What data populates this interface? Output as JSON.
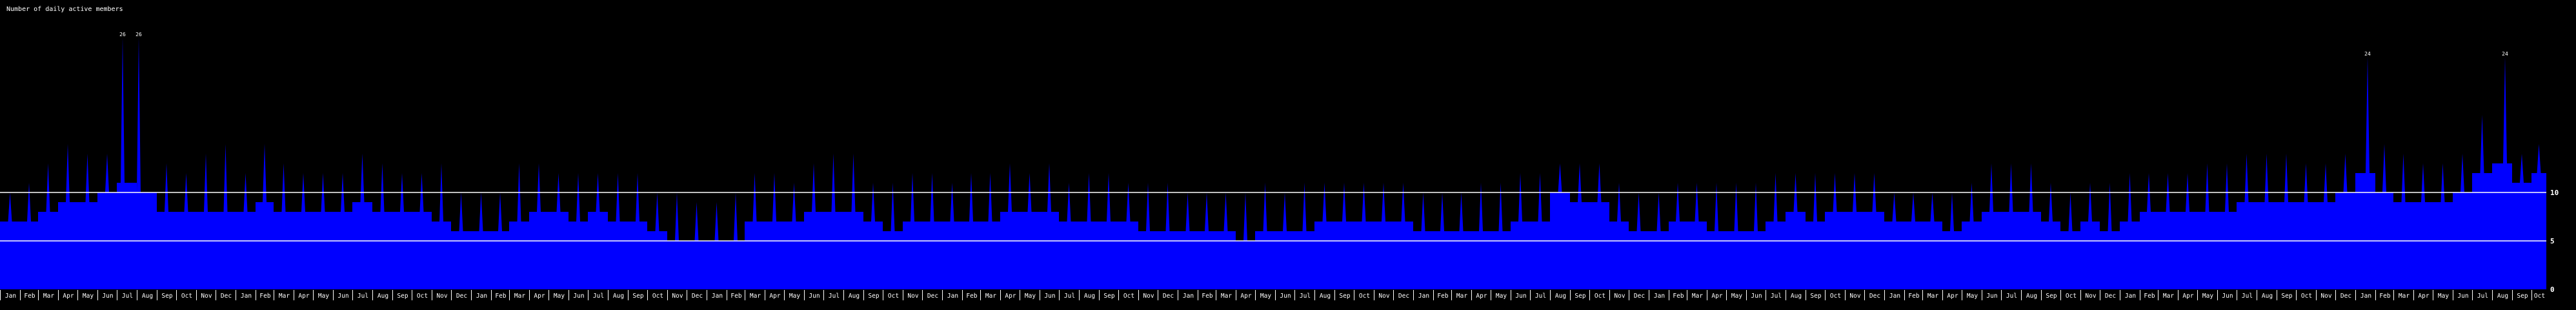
{
  "chart_data": {
    "type": "area",
    "title": "Number of daily active members",
    "granularity_note_free": true,
    "x_tick_labels": [
      "Jan",
      "Feb",
      "Mar",
      "Apr",
      "May",
      "Jun",
      "Jul",
      "Aug",
      "Sep",
      "Oct",
      "Nov",
      "Dec",
      "Jan",
      "Feb",
      "Mar",
      "Apr",
      "May",
      "Jun",
      "Jul",
      "Aug",
      "Sep",
      "Oct",
      "Nov",
      "Dec",
      "Jan",
      "Feb",
      "Mar",
      "Apr",
      "May",
      "Jun",
      "Jul",
      "Aug",
      "Sep",
      "Oct",
      "Nov",
      "Dec",
      "Jan",
      "Feb",
      "Mar",
      "Apr",
      "May",
      "Jun",
      "Jul",
      "Aug",
      "Sep",
      "Oct",
      "Nov",
      "Dec",
      "Jan",
      "Feb",
      "Mar",
      "Apr",
      "May",
      "Jun",
      "Jul",
      "Aug",
      "Sep",
      "Oct",
      "Nov",
      "Dec",
      "Jan",
      "Feb",
      "Mar",
      "Apr",
      "May",
      "Jun",
      "Jul",
      "Aug",
      "Sep",
      "Oct",
      "Nov",
      "Dec",
      "Jan",
      "Feb",
      "Mar",
      "Apr",
      "May",
      "Jun",
      "Jul",
      "Aug",
      "Sep",
      "Oct",
      "Nov",
      "Dec",
      "Jan",
      "Feb",
      "Mar",
      "Apr",
      "May",
      "Jun",
      "Jul",
      "Aug",
      "Sep",
      "Oct",
      "Nov",
      "Dec",
      "Jan",
      "Feb",
      "Mar",
      "Apr",
      "May",
      "Jun",
      "Jul",
      "Aug",
      "Sep",
      "Oct",
      "Nov",
      "Dec",
      "Jan",
      "Feb",
      "Mar",
      "Apr",
      "May",
      "Jun",
      "Jul",
      "Aug",
      "Sep",
      "Oct",
      "Nov",
      "Dec",
      "Jan",
      "Feb",
      "Mar",
      "Apr",
      "May",
      "Jun",
      "Jul",
      "Aug",
      "Sep",
      "Oct"
    ],
    "monthly_typical": [
      7,
      7,
      8,
      9,
      9,
      10,
      11,
      10,
      8,
      8,
      8,
      8,
      8,
      9,
      8,
      8,
      8,
      8,
      9,
      8,
      8,
      8,
      7,
      6,
      6,
      6,
      7,
      8,
      8,
      7,
      8,
      7,
      7,
      6,
      5,
      5,
      5,
      5,
      7,
      7,
      7,
      8,
      8,
      8,
      7,
      6,
      7,
      7,
      7,
      7,
      7,
      8,
      8,
      8,
      7,
      7,
      7,
      7,
      6,
      6,
      6,
      6,
      6,
      5,
      6,
      6,
      6,
      7,
      7,
      7,
      7,
      7,
      6,
      6,
      6,
      6,
      6,
      7,
      7,
      10,
      9,
      9,
      7,
      6,
      6,
      7,
      7,
      6,
      6,
      6,
      7,
      8,
      7,
      8,
      8,
      8,
      7,
      7,
      7,
      6,
      7,
      8,
      8,
      8,
      7,
      6,
      7,
      6,
      7,
      8,
      8,
      8,
      8,
      8,
      9,
      9,
      9,
      9,
      9,
      10,
      12,
      10,
      9,
      9,
      9,
      10,
      12,
      13,
      11,
      12
    ],
    "monthly_max": [
      10,
      11,
      13,
      15,
      14,
      14,
      26,
      26,
      13,
      12,
      14,
      15,
      12,
      15,
      13,
      12,
      12,
      12,
      14,
      13,
      12,
      12,
      13,
      10,
      10,
      10,
      13,
      13,
      12,
      12,
      12,
      12,
      12,
      10,
      10,
      9,
      9,
      10,
      12,
      12,
      11,
      13,
      14,
      14,
      11,
      11,
      12,
      12,
      11,
      12,
      12,
      13,
      12,
      13,
      11,
      12,
      12,
      11,
      11,
      11,
      10,
      10,
      10,
      10,
      11,
      10,
      11,
      11,
      11,
      11,
      11,
      11,
      10,
      10,
      10,
      11,
      11,
      12,
      12,
      13,
      13,
      13,
      11,
      10,
      10,
      11,
      11,
      11,
      11,
      11,
      12,
      12,
      12,
      12,
      12,
      12,
      10,
      10,
      10,
      10,
      11,
      13,
      13,
      13,
      11,
      10,
      11,
      11,
      12,
      12,
      12,
      12,
      13,
      13,
      14,
      14,
      14,
      13,
      13,
      14,
      24,
      15,
      14,
      13,
      13,
      14,
      18,
      24,
      14,
      15
    ],
    "annotated_peaks": [
      {
        "month_index": 6,
        "day": 9,
        "value": 26,
        "label": "26"
      },
      {
        "month_index": 7,
        "day": 3,
        "value": 26,
        "label": "26"
      },
      {
        "month_index": 120,
        "day": 19,
        "value": 24,
        "label": "24"
      },
      {
        "month_index": 127,
        "day": 20,
        "value": 24,
        "label": "24"
      }
    ],
    "y_ticks": [
      {
        "value": 0,
        "label": "0"
      },
      {
        "value": 5,
        "label": "5"
      },
      {
        "value": 10,
        "label": "10"
      }
    ],
    "gridlines": [
      5,
      10
    ],
    "ylim": [
      0,
      26
    ],
    "colors": {
      "area": "#0000ff",
      "background": "#000000",
      "grid": "#ffffff",
      "text": "#ffffff"
    }
  }
}
